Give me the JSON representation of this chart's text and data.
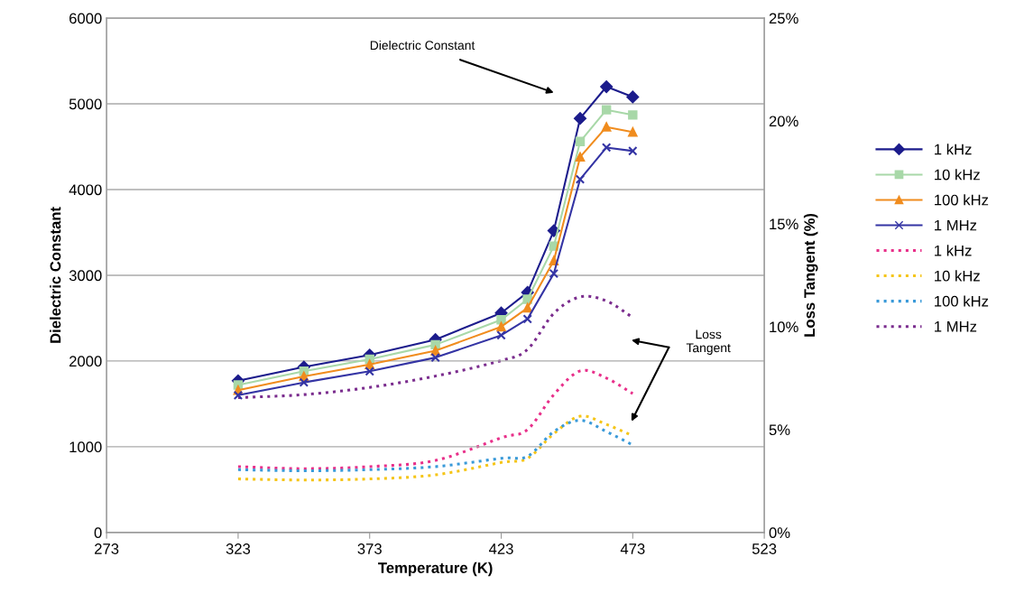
{
  "chart_data": {
    "type": "line",
    "xlabel": "Temperature (K)",
    "ylabel": "Dielectric Constant",
    "y2label": "Loss Tangent (%)",
    "x": [
      323,
      348,
      373,
      398,
      423,
      433,
      443,
      453,
      463,
      473
    ],
    "xlim": [
      273,
      523
    ],
    "xticks": [
      273,
      323,
      373,
      423,
      473,
      523
    ],
    "ylim": [
      0,
      6000
    ],
    "yticks": [
      0,
      1000,
      2000,
      3000,
      4000,
      5000,
      6000
    ],
    "y2lim": [
      0,
      25
    ],
    "y2ticks": [
      {
        "value": 0,
        "label": "0%"
      },
      {
        "value": 5,
        "label": "5%"
      },
      {
        "value": 10,
        "label": "10%"
      },
      {
        "value": 15,
        "label": "15%"
      },
      {
        "value": 20,
        "label": "20%"
      },
      {
        "value": 25,
        "label": "25%"
      }
    ],
    "grid": "y",
    "legend": "right",
    "annotations": [
      "Dielectric Constant",
      "Loss\nTangent"
    ],
    "series": [
      {
        "name": "1 kHz",
        "color": "#1c1c8c",
        "marker": "diamond",
        "line_style": "solid",
        "values": [
          1770,
          1930,
          2070,
          2250,
          2560,
          2800,
          3520,
          4830,
          5200,
          5080
        ]
      },
      {
        "name": "10 kHz",
        "color": "#a8d8a8",
        "marker": "square",
        "line_style": "solid",
        "values": [
          1720,
          1880,
          2020,
          2190,
          2480,
          2720,
          3340,
          4560,
          4930,
          4870
        ]
      },
      {
        "name": "100 kHz",
        "color": "#f08c1e",
        "marker": "triangle",
        "line_style": "solid",
        "values": [
          1660,
          1820,
          1960,
          2120,
          2400,
          2620,
          3170,
          4380,
          4730,
          4670
        ]
      },
      {
        "name": "1 MHz",
        "color": "#3434a4",
        "marker": "cross",
        "line_style": "solid",
        "values": [
          1600,
          1750,
          1880,
          2040,
          2300,
          2490,
          3020,
          4120,
          4490,
          4450
        ]
      },
      {
        "name": "1 kHz",
        "color": "#e8308a",
        "marker": "none",
        "line_style": "dotted",
        "axis": "y2",
        "values": [
          3.2,
          3.1,
          3.2,
          3.5,
          4.6,
          5.0,
          6.7,
          7.85,
          7.5,
          6.75
        ]
      },
      {
        "name": "10 kHz",
        "color": "#f5c518",
        "marker": "none",
        "line_style": "dotted",
        "axis": "y2",
        "values": [
          2.6,
          2.55,
          2.6,
          2.8,
          3.4,
          3.6,
          4.8,
          5.65,
          5.25,
          4.7
        ]
      },
      {
        "name": "100 kHz",
        "color": "#3a9ad9",
        "marker": "none",
        "line_style": "dotted",
        "axis": "y2",
        "values": [
          3.05,
          3.0,
          3.05,
          3.2,
          3.6,
          3.7,
          4.9,
          5.45,
          4.9,
          4.25
        ]
      },
      {
        "name": "1 MHz",
        "color": "#7b2d8e",
        "marker": "none",
        "line_style": "dotted",
        "axis": "y2",
        "values": [
          6.55,
          6.7,
          7.05,
          7.6,
          8.35,
          8.9,
          10.65,
          11.45,
          11.25,
          10.45
        ]
      }
    ]
  }
}
